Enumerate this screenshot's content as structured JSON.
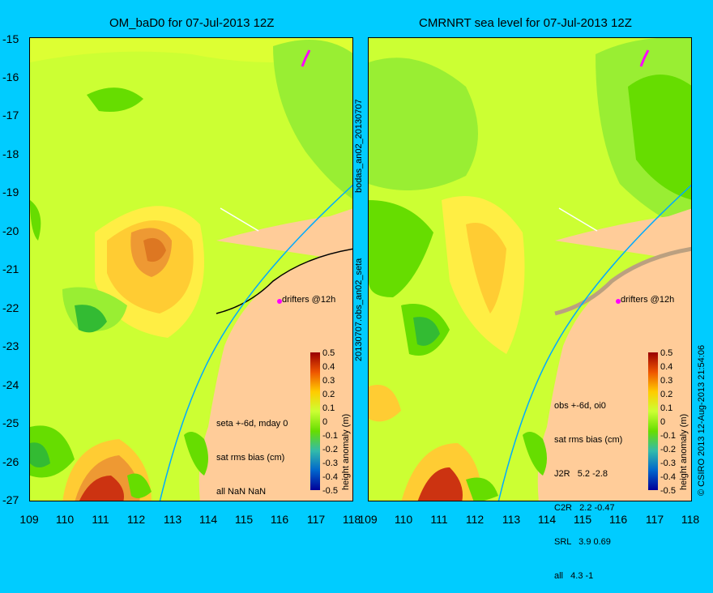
{
  "left_panel": {
    "title": "OM_baD0 for 07-Jul-2013 12Z",
    "stats_lines": [
      "seta +-6d, mday 0",
      "sat rms bias (cm)",
      "all NaN NaN"
    ],
    "drifter_label": "drifters @12h",
    "vertical_label_top": "bodas_an02_20130707",
    "vertical_label_bottom": "20130707.obs_an02_seta"
  },
  "right_panel": {
    "title": "CMRNRT sea level  for 07-Jul-2013 12Z",
    "stats_lines": [
      "obs +-6d, oi0",
      "sat rms bias (cm)",
      "J2R   5.2 -2.8",
      "C2R   2.2 -0.47",
      "SRL   3.9 0.69",
      "all   4.3 -1"
    ],
    "drifter_label": "drifters @12h",
    "copyright": "© CSIRO 2013   12-Aug-2013 21:54:06"
  },
  "axes": {
    "y_ticks": [
      "-15",
      "-16",
      "-17",
      "-18",
      "-19",
      "-20",
      "-21",
      "-22",
      "-23",
      "-24",
      "-25",
      "-26",
      "-27"
    ],
    "x_ticks": [
      "109",
      "110",
      "111",
      "112",
      "113",
      "114",
      "115",
      "116",
      "117",
      "118"
    ]
  },
  "colorbar": {
    "label": "height anomaly (m)",
    "ticks": [
      "0.5",
      "0.4",
      "0.3",
      "0.2",
      "0.1",
      "0",
      "-0.1",
      "-0.2",
      "-0.3",
      "-0.4",
      "-0.5"
    ]
  },
  "colors": {
    "background": "#00ccff",
    "land": "#ffcc99",
    "positive_high": "#990000",
    "zero": "#66dd00",
    "negative_low": "#000099"
  }
}
